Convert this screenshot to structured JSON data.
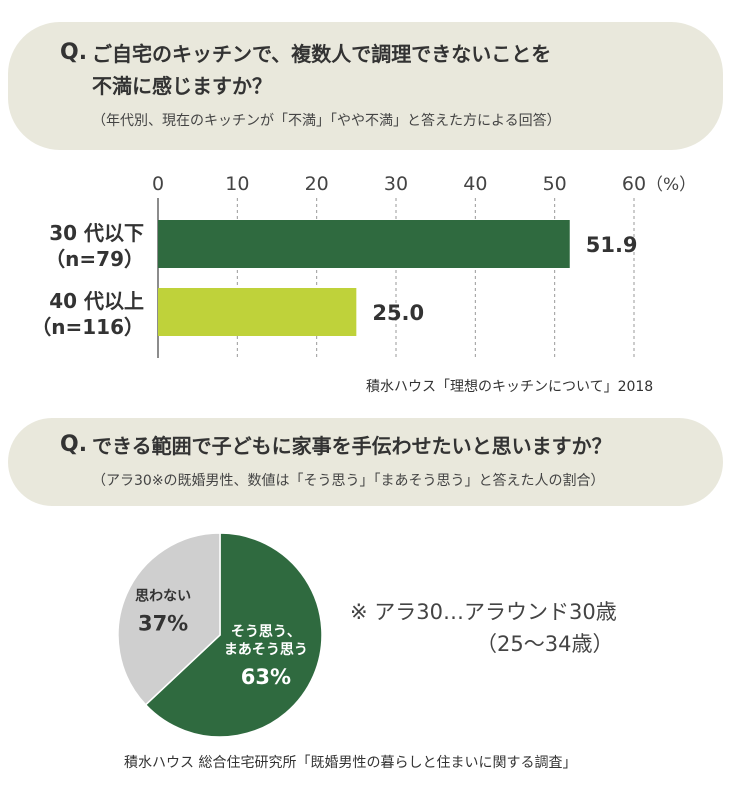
{
  "question1": {
    "prefix": "Q.",
    "line1": "ご自宅のキッチンで、複数人で調理できないことを",
    "line2": "不満に感じますか？",
    "subtitle": "（年代別、現在のキッチンが「不満」「やや不満」と答えた方による回答）",
    "source": "積水ハウス「理想のキッチンについて」2018"
  },
  "question2": {
    "prefix": "Q.",
    "line1": "できる範囲で子どもに家事を手伝わせたいと思いますか？",
    "subtitle": "（アラ30※の既婚男性、数値は「そう思う」「まあそう思う」と答えた人の割合）",
    "note_line1": "※ アラ30…アラウンド30歳",
    "note_line2": "（25〜34歳）",
    "source": "積水ハウス 総合住宅研究所「既婚男性の暮らしと住まいに関する調査」"
  },
  "chart_data": [
    {
      "type": "bar",
      "orientation": "horizontal",
      "categories": [
        {
          "line1": "30 代以下",
          "line2": "（n=79）"
        },
        {
          "line1": "40 代以上",
          "line2": "（n=116）"
        }
      ],
      "values": [
        51.9,
        25.0
      ],
      "value_labels": [
        "51.9",
        "25.0"
      ],
      "colors": [
        "#2f6a3f",
        "#bfd23a"
      ],
      "xlim": [
        0,
        60
      ],
      "ticks": [
        0,
        10,
        20,
        30,
        40,
        50,
        60
      ],
      "tick_labels": [
        "0",
        "10",
        "20",
        "30",
        "40",
        "50",
        "60"
      ],
      "unit_label": "（%）",
      "grid": true
    },
    {
      "type": "pie",
      "slices": [
        {
          "label_lines": [
            "そう思う、",
            "まあそう思う"
          ],
          "value": 63,
          "value_label": "63%",
          "color": "#2f6a3f",
          "text_color": "#ffffff"
        },
        {
          "label_lines": [
            "思わない"
          ],
          "value": 37,
          "value_label": "37%",
          "color": "#cfcfcf",
          "text_color": "#333333"
        }
      ]
    }
  ]
}
